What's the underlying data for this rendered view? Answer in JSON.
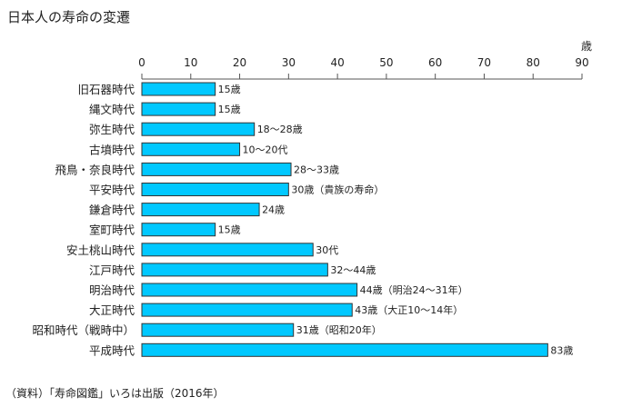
{
  "title": "日本人の寿命の変遷",
  "source": "（資料）「寿命図鑑」いろは出版（2016年）",
  "chart_data": {
    "type": "bar",
    "orientation": "horizontal",
    "title": "日本人の寿命の変遷",
    "unit": "歳",
    "xlim": [
      0,
      90
    ],
    "ticks": [
      "0",
      "10",
      "20",
      "30",
      "40",
      "50",
      "60",
      "70",
      "80",
      "90"
    ],
    "bar_color": "#00c8ff",
    "categories": [
      "旧石器時代",
      "縄文時代",
      "弥生時代",
      "古墳時代",
      "飛鳥・奈良時代",
      "平安時代",
      "鎌倉時代",
      "室町時代",
      "安土桃山時代",
      "江戸時代",
      "明治時代",
      "大正時代",
      "昭和時代（戦時中）",
      "平成時代"
    ],
    "values": [
      15,
      15,
      23,
      20,
      30.5,
      30,
      24,
      15,
      35,
      38,
      44,
      43,
      31,
      83
    ],
    "data_labels": [
      "15歳",
      "15歳",
      "18〜28歳",
      "10〜20代",
      "28〜33歳",
      "30歳（貴族の寿命）",
      "24歳",
      "15歳",
      "30代",
      "32〜44歳",
      "44歳（明治24〜31年）",
      "43歳（大正10〜14年）",
      "31歳（昭和20年）",
      "83歳"
    ]
  }
}
